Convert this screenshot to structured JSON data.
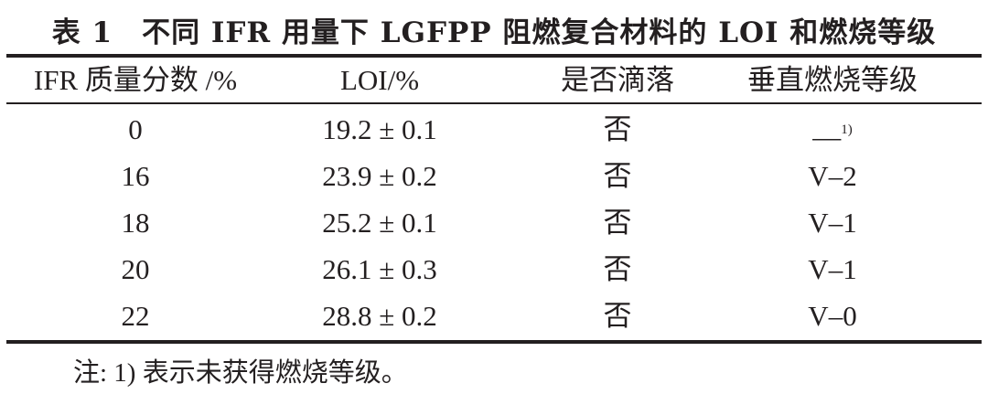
{
  "title": "表 1　不同 IFR 用量下 LGFPP 阻燃复合材料的 LOI 和燃烧等级",
  "headers": [
    "IFR 质量分数 /%",
    "LOI/%",
    "是否滴落",
    "垂直燃烧等级"
  ],
  "rows": [
    {
      "ifr": "0",
      "loi": "19.2 ± 0.1",
      "drip": "否",
      "grade": "—",
      "grade_note": "1)"
    },
    {
      "ifr": "16",
      "loi": "23.9 ± 0.2",
      "drip": "否",
      "grade": "V–2"
    },
    {
      "ifr": "18",
      "loi": "25.2 ± 0.1",
      "drip": "否",
      "grade": "V–1"
    },
    {
      "ifr": "20",
      "loi": "26.1 ± 0.3",
      "drip": "否",
      "grade": "V–1"
    },
    {
      "ifr": "22",
      "loi": "28.8 ± 0.2",
      "drip": "否",
      "grade": "V–0"
    }
  ],
  "note": "注: 1) 表示未获得燃烧等级。"
}
